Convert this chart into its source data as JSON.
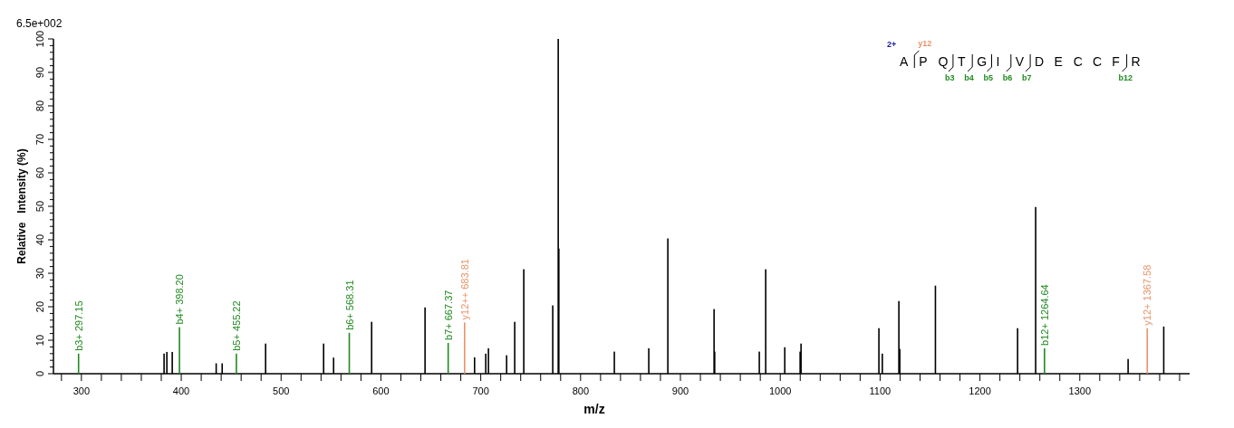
{
  "chart_data": {
    "type": "bar",
    "xlabel": "m/z",
    "ylabel": "Relative   Intensity (%)",
    "xlim": [
      272,
      1410
    ],
    "xticks": [
      {
        "value": 280,
        "label": null
      },
      300,
      {
        "value": 320,
        "label": null
      },
      {
        "value": 340,
        "label": null
      },
      {
        "value": 360,
        "label": null
      },
      {
        "value": 380,
        "label": null
      },
      400,
      {
        "value": 420,
        "label": null
      },
      {
        "value": 440,
        "label": null
      },
      {
        "value": 460,
        "label": null
      },
      {
        "value": 480,
        "label": null
      },
      500,
      {
        "value": 520,
        "label": null
      },
      {
        "value": 540,
        "label": null
      },
      {
        "value": 560,
        "label": null
      },
      {
        "value": 580,
        "label": null
      },
      600,
      {
        "value": 620,
        "label": null
      },
      {
        "value": 640,
        "label": null
      },
      {
        "value": 660,
        "label": null
      },
      {
        "value": 680,
        "label": null
      },
      700,
      {
        "value": 720,
        "label": null
      },
      {
        "value": 740,
        "label": null
      },
      {
        "value": 760,
        "label": null
      },
      {
        "value": 780,
        "label": null
      },
      800,
      {
        "value": 820,
        "label": null
      },
      {
        "value": 840,
        "label": null
      },
      {
        "value": 860,
        "label": null
      },
      {
        "value": 880,
        "label": null
      },
      900,
      {
        "value": 920,
        "label": null
      },
      {
        "value": 940,
        "label": null
      },
      {
        "value": 960,
        "label": null
      },
      {
        "value": 980,
        "label": null
      },
      1000,
      {
        "value": 1020,
        "label": null
      },
      {
        "value": 1040,
        "label": null
      },
      {
        "value": 1060,
        "label": null
      },
      {
        "value": 1080,
        "label": null
      },
      1100,
      {
        "value": 1120,
        "label": null
      },
      {
        "value": 1140,
        "label": null
      },
      {
        "value": 1160,
        "label": null
      },
      {
        "value": 1180,
        "label": null
      },
      1200,
      {
        "value": 1220,
        "label": null
      },
      {
        "value": 1240,
        "label": null
      },
      {
        "value": 1260,
        "label": null
      },
      {
        "value": 1280,
        "label": null
      },
      1300,
      {
        "value": 1320,
        "label": null
      },
      {
        "value": 1340,
        "label": null
      },
      {
        "value": 1360,
        "label": null
      },
      {
        "value": 1380,
        "label": null
      },
      {
        "value": 1400,
        "label": null
      }
    ],
    "ylim": [
      0,
      100
    ],
    "yticks": [
      0,
      {
        "value": 2,
        "label": null
      },
      {
        "value": 4,
        "label": null
      },
      {
        "value": 6,
        "label": null
      },
      {
        "value": 8,
        "label": null
      },
      10,
      {
        "value": 12,
        "label": null
      },
      {
        "value": 14,
        "label": null
      },
      {
        "value": 16,
        "label": null
      },
      {
        "value": 18,
        "label": null
      },
      20,
      {
        "value": 22,
        "label": null
      },
      {
        "value": 24,
        "label": null
      },
      {
        "value": 26,
        "label": null
      },
      {
        "value": 28,
        "label": null
      },
      30,
      {
        "value": 32,
        "label": null
      },
      {
        "value": 34,
        "label": null
      },
      {
        "value": 36,
        "label": null
      },
      {
        "value": 38,
        "label": null
      },
      40,
      {
        "value": 42,
        "label": null
      },
      {
        "value": 44,
        "label": null
      },
      {
        "value": 46,
        "label": null
      },
      {
        "value": 48,
        "label": null
      },
      50,
      {
        "value": 52,
        "label": null
      },
      {
        "value": 54,
        "label": null
      },
      {
        "value": 56,
        "label": null
      },
      {
        "value": 58,
        "label": null
      },
      60,
      {
        "value": 62,
        "label": null
      },
      {
        "value": 64,
        "label": null
      },
      {
        "value": 66,
        "label": null
      },
      {
        "value": 68,
        "label": null
      },
      70,
      {
        "value": 72,
        "label": null
      },
      {
        "value": 74,
        "label": null
      },
      {
        "value": 76,
        "label": null
      },
      {
        "value": 78,
        "label": null
      },
      80,
      {
        "value": 82,
        "label": null
      },
      {
        "value": 84,
        "label": null
      },
      {
        "value": 86,
        "label": null
      },
      {
        "value": 88,
        "label": null
      },
      90,
      {
        "value": 92,
        "label": null
      },
      {
        "value": 94,
        "label": null
      },
      {
        "value": 96,
        "label": null
      },
      {
        "value": 98,
        "label": null
      },
      100
    ],
    "series": [
      {
        "color": "#000000",
        "x": [
          382.8,
          385.6,
          391,
          435,
          441,
          484.5,
          542.6,
          552.6,
          590.7,
          644.2,
          693.8,
          705,
          707.7,
          725.9,
          734,
          743.1,
          772.1,
          777.6,
          778.2,
          833.8,
          868.3,
          887.4,
          933.7,
          934.3,
          979,
          985.4,
          1004.5,
          1019.9,
          1020.8,
          1098.8,
          1102.2,
          1118.8,
          1119.7,
          1155.4,
          1237.7,
          1255.8,
          1348.4,
          1384.1
        ],
        "values": [
          6,
          6.5,
          6.5,
          3.1,
          3.1,
          9,
          9,
          4.8,
          15.5,
          19.8,
          4.9,
          6,
          7.6,
          5.5,
          15.5,
          31.2,
          20.4,
          100,
          37.4,
          6.6,
          7.6,
          40.4,
          19.3,
          6.6,
          6.6,
          31.2,
          7.9,
          6.6,
          9,
          13.6,
          6,
          21.7,
          7.4,
          26.3,
          13.6,
          49.8,
          4.4,
          14.1
        ]
      },
      {
        "color": "#218a21",
        "x": [
          297.15,
          398.2,
          455.22,
          568.31,
          667.37,
          1264.64
        ],
        "values": [
          6,
          13.9,
          6,
          12.2,
          9.2,
          7.6
        ]
      },
      {
        "color": "#e8936a",
        "x": [
          683.81,
          1367.58
        ],
        "values": [
          15.3,
          13.6
        ]
      }
    ],
    "annotations": [
      "6.5e+002",
      "2+",
      "A P Q T G I V D E C C F R",
      "y12",
      "b3",
      "b4",
      "b5",
      "b6",
      "b7",
      "b12",
      {
        "text": "b3+ 297.15",
        "x": 297.15,
        "y": 6
      },
      {
        "text": "b4+ 398.20",
        "x": 398.2,
        "y": 13.9
      },
      {
        "text": "b5+ 455.22",
        "x": 455.22,
        "y": 6
      },
      {
        "text": "b6+ 568.31",
        "x": 568.31,
        "y": 12.2
      },
      {
        "text": "b7+ 667.37",
        "x": 667.37,
        "y": 9.2
      },
      {
        "text": "y12++ 683.81",
        "x": 683.81,
        "y": 15.3
      },
      {
        "text": "b12+ 1264.64",
        "x": 1264.64,
        "y": 7.6
      },
      {
        "text": "y12+ 1367.58",
        "x": 1367.58,
        "y": 13.6
      }
    ]
  }
}
